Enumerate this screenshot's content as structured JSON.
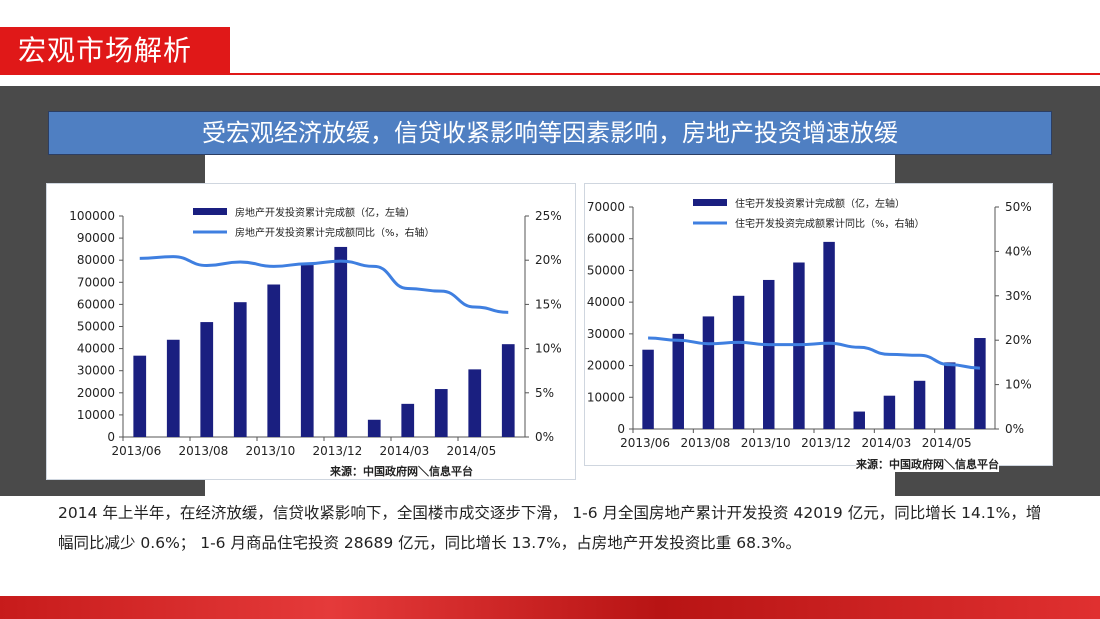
{
  "header": {
    "title": "宏观市场解析"
  },
  "banner": {
    "text": "受宏观经济放缓，信贷收紧影响等因素影响，房地产投资增速放缓"
  },
  "paragraph": "2014 年上半年，在经济放缓，信贷收紧影响下，全国楼市成交逐步下滑， 1-6 月全国房地产累计开发投资 42019 亿元，同比增长 14.1%，增幅同比减少 0.6%； 1-6 月商品住宅投资 28689 亿元，同比增长 13.7%，占房地产开发投资比重 68.3%。",
  "colors": {
    "bar": "#1a1f80",
    "line": "#3f7fe0",
    "accent_red": "#e01818",
    "banner": "#4f7fc2"
  },
  "chart_data": [
    {
      "type": "bar",
      "categories": [
        "2013/06",
        "2013/07",
        "2013/08",
        "2013/09",
        "2013/10",
        "2013/11",
        "2013/12",
        "2014/02",
        "2014/03",
        "2014/04",
        "2014/05",
        "2014/06"
      ],
      "x_tick_labels": [
        "2013/06",
        "2013/08",
        "2013/10",
        "2013/12",
        "2014/03",
        "2014/05"
      ],
      "series": [
        {
          "name": "房地产开发投资累计完成额（亿，左轴）",
          "kind": "bar",
          "axis": "left",
          "values": [
            36800,
            44000,
            52000,
            61000,
            69000,
            77800,
            86000,
            7800,
            15000,
            21700,
            30600,
            42000
          ]
        },
        {
          "name": "房地产开发投资累计完成额同比（%，右轴）",
          "kind": "line",
          "axis": "right",
          "values": [
            20.2,
            20.4,
            19.4,
            19.8,
            19.3,
            19.6,
            19.9,
            19.3,
            16.8,
            16.5,
            14.7,
            14.1
          ]
        }
      ],
      "ylim_left": [
        0,
        100000
      ],
      "y_left_ticks": [
        "0",
        "10000",
        "20000",
        "30000",
        "40000",
        "50000",
        "60000",
        "70000",
        "80000",
        "90000",
        "100000"
      ],
      "ylim_right": [
        0,
        25
      ],
      "y_right_ticks": [
        "0%",
        "5%",
        "10%",
        "15%",
        "20%",
        "25%"
      ],
      "source": "来源：中国政府网＼信息平台",
      "legend": "top"
    },
    {
      "type": "bar",
      "categories": [
        "2013/06",
        "2013/07",
        "2013/08",
        "2013/09",
        "2013/10",
        "2013/11",
        "2013/12",
        "2014/02",
        "2014/03",
        "2014/04",
        "2014/05",
        "2014/06"
      ],
      "x_tick_labels": [
        "2013/06",
        "2013/08",
        "2013/10",
        "2013/12",
        "2014/03",
        "2014/05"
      ],
      "series": [
        {
          "name": "住宅开发投资累计完成额（亿，左轴）",
          "kind": "bar",
          "axis": "left",
          "values": [
            25000,
            30000,
            35500,
            42000,
            47000,
            52500,
            59000,
            5500,
            10500,
            15200,
            21000,
            28689
          ]
        },
        {
          "name": "住宅开发投资完成额累计同比（%，右轴）",
          "kind": "line",
          "axis": "right",
          "values": [
            20.5,
            20.0,
            19.2,
            19.5,
            19.0,
            19.0,
            19.3,
            18.4,
            16.8,
            16.6,
            14.5,
            13.7
          ]
        }
      ],
      "ylim_left": [
        0,
        70000
      ],
      "y_left_ticks": [
        "0",
        "10000",
        "20000",
        "30000",
        "40000",
        "50000",
        "60000",
        "70000"
      ],
      "ylim_right": [
        0,
        50
      ],
      "y_right_ticks": [
        "0%",
        "10%",
        "20%",
        "30%",
        "40%",
        "50%"
      ],
      "source": "来源：中国政府网＼信息平台",
      "legend": "top"
    }
  ]
}
